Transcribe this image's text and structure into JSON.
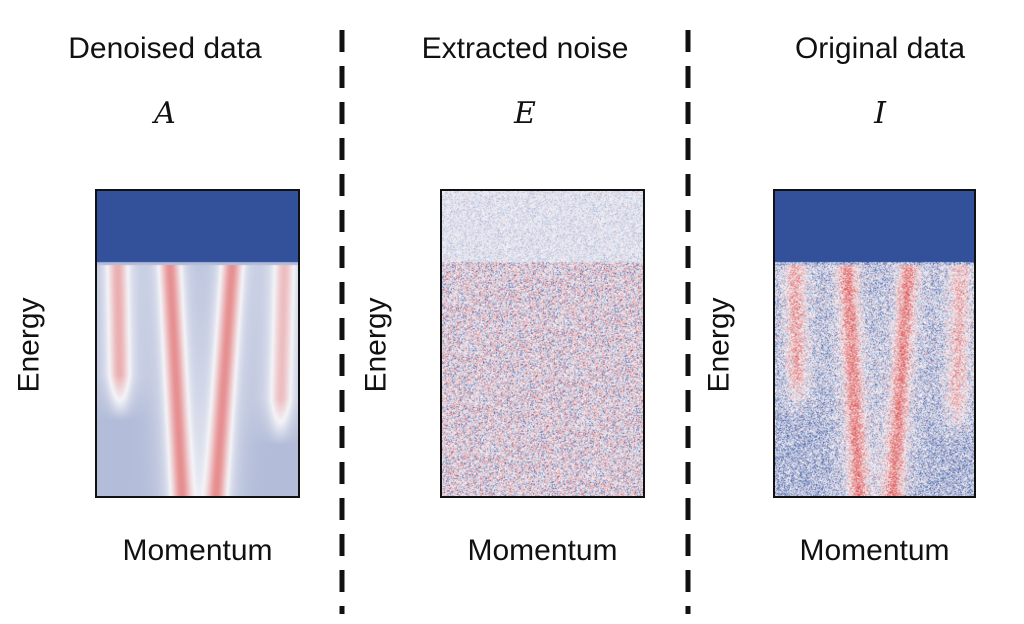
{
  "panels": [
    {
      "title": "Denoised data",
      "symbol": "A",
      "ylabel": "Energy",
      "xlabel": "Momentum"
    },
    {
      "title": "Extracted noise",
      "symbol": "E",
      "ylabel": "Energy",
      "xlabel": "Momentum"
    },
    {
      "title": "Original data",
      "symbol": "I",
      "ylabel": "Energy",
      "xlabel": "Momentum"
    }
  ],
  "colors": {
    "background_blue": "#33509a",
    "low": "#3a55a0",
    "mid": "#f4f4f8",
    "high": "#e05a5a"
  }
}
